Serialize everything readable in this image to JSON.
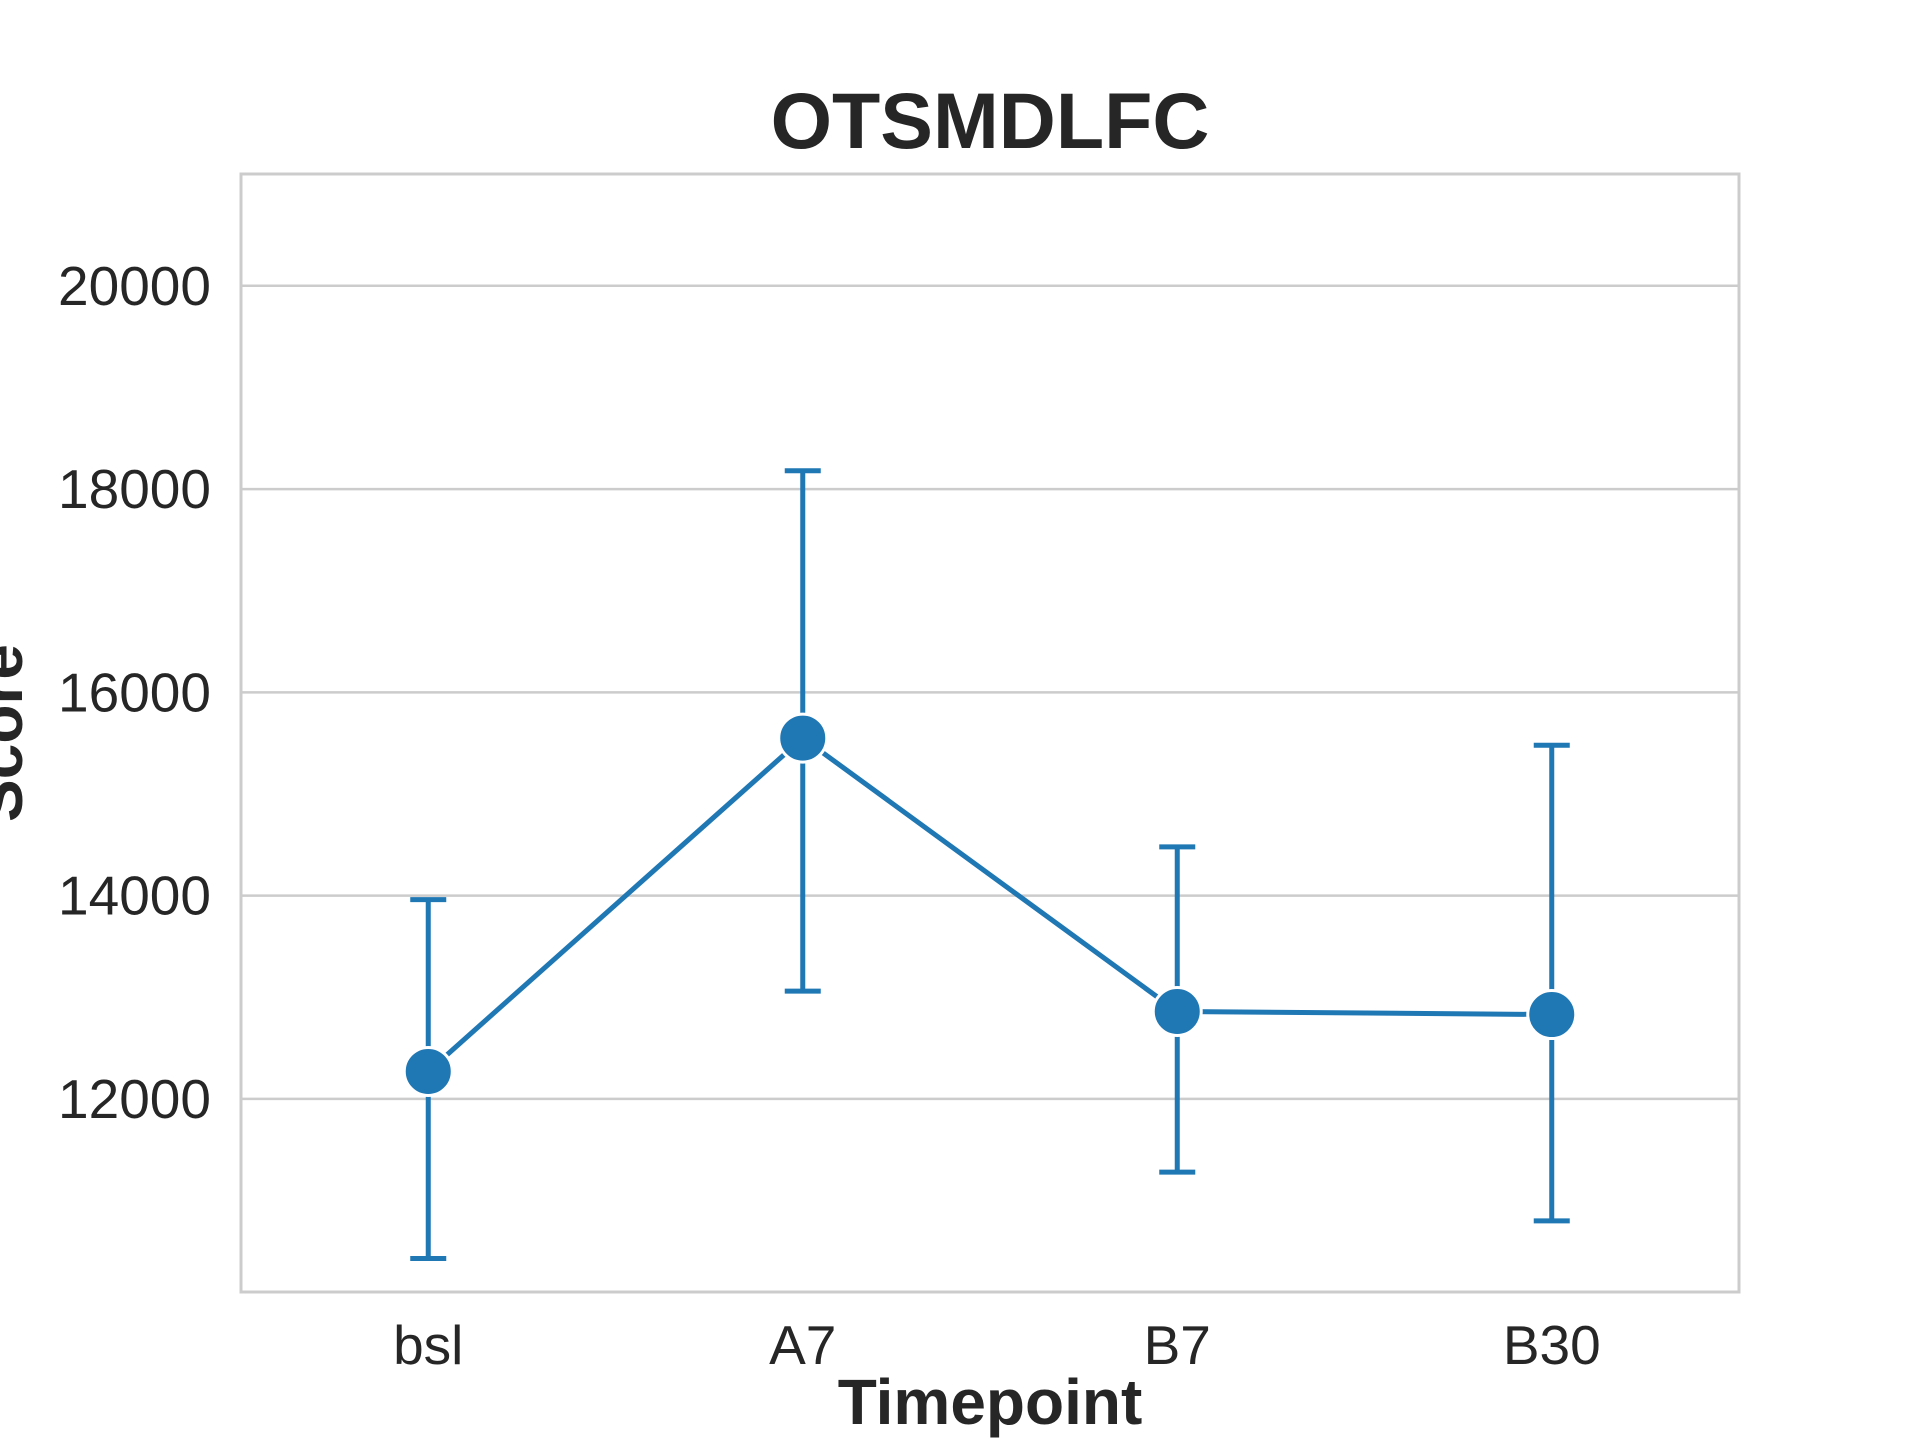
{
  "chart_data": {
    "type": "line",
    "title": "OTSMDLFC",
    "xlabel": "Timepoint",
    "ylabel": "Score",
    "categories": [
      "bsl",
      "A7",
      "B7",
      "B30"
    ],
    "series": [
      {
        "values": [
          12270,
          15550,
          12860,
          12830
        ],
        "err_low": [
          10430,
          13060,
          11280,
          10800
        ],
        "err_high": [
          13960,
          18180,
          14480,
          15480
        ],
        "color": "#1f77b4"
      }
    ],
    "ylim": [
      10100,
      21100
    ],
    "yticks": [
      12000,
      14000,
      16000,
      18000,
      20000
    ],
    "grid": true,
    "grid_axis": "y"
  }
}
